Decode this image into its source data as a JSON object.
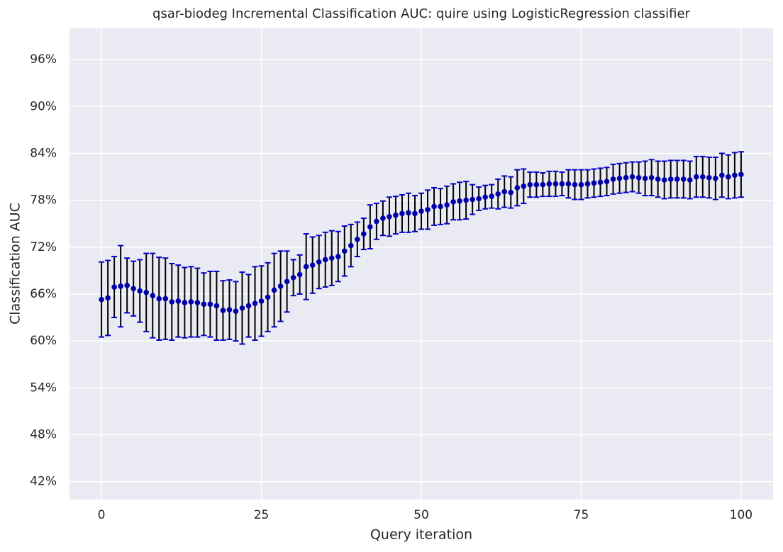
{
  "chart_data": {
    "type": "errorbar",
    "title": "qsar-biodeg Incremental Classification AUC: quire using LogisticRegression classifier",
    "xlabel": "Query iteration",
    "ylabel": "Classification AUC",
    "x": [
      0,
      1,
      2,
      3,
      4,
      5,
      6,
      7,
      8,
      9,
      10,
      11,
      12,
      13,
      14,
      15,
      16,
      17,
      18,
      19,
      20,
      21,
      22,
      23,
      24,
      25,
      26,
      27,
      28,
      29,
      30,
      31,
      32,
      33,
      34,
      35,
      36,
      37,
      38,
      39,
      40,
      41,
      42,
      43,
      44,
      45,
      46,
      47,
      48,
      49,
      50,
      51,
      52,
      53,
      54,
      55,
      56,
      57,
      58,
      59,
      60,
      61,
      62,
      63,
      64,
      65,
      66,
      67,
      68,
      69,
      70,
      71,
      72,
      73,
      74,
      75,
      76,
      77,
      78,
      79,
      80,
      81,
      82,
      83,
      84,
      85,
      86,
      87,
      88,
      89,
      90,
      91,
      92,
      93,
      94,
      95,
      96,
      97,
      98,
      99,
      100
    ],
    "values": [
      65.3,
      65.5,
      66.9,
      67.0,
      67.1,
      66.7,
      66.4,
      66.2,
      65.8,
      65.4,
      65.4,
      65.0,
      65.1,
      64.9,
      65.0,
      64.9,
      64.7,
      64.7,
      64.5,
      63.9,
      64.0,
      63.8,
      64.2,
      64.5,
      64.8,
      65.1,
      65.6,
      66.5,
      67.0,
      67.6,
      68.1,
      68.5,
      69.5,
      69.7,
      70.1,
      70.4,
      70.6,
      70.8,
      71.5,
      72.2,
      73.0,
      73.7,
      74.6,
      75.3,
      75.7,
      75.9,
      76.1,
      76.3,
      76.4,
      76.3,
      76.6,
      76.8,
      77.2,
      77.2,
      77.4,
      77.8,
      77.9,
      78.0,
      78.1,
      78.2,
      78.4,
      78.5,
      78.8,
      79.1,
      79.0,
      79.6,
      79.8,
      80.0,
      80.0,
      80.0,
      80.1,
      80.1,
      80.1,
      80.1,
      80.0,
      80.0,
      80.1,
      80.2,
      80.3,
      80.4,
      80.7,
      80.8,
      80.9,
      81.0,
      80.9,
      80.8,
      80.9,
      80.7,
      80.6,
      80.7,
      80.7,
      80.7,
      80.6,
      81.0,
      81.0,
      80.9,
      80.8,
      81.2,
      81.0,
      81.2,
      81.3
    ],
    "errors": [
      4.8,
      4.8,
      3.9,
      5.2,
      3.5,
      3.5,
      4.0,
      5.0,
      5.4,
      5.3,
      5.2,
      4.9,
      4.6,
      4.5,
      4.5,
      4.4,
      4.0,
      4.2,
      4.4,
      3.8,
      3.8,
      3.8,
      4.6,
      4.0,
      4.7,
      4.5,
      4.4,
      4.7,
      4.5,
      3.9,
      2.3,
      2.5,
      4.2,
      3.6,
      3.4,
      3.5,
      3.5,
      3.2,
      3.2,
      2.7,
      2.2,
      2.0,
      2.8,
      2.3,
      2.2,
      2.5,
      2.4,
      2.4,
      2.5,
      2.3,
      2.3,
      2.5,
      2.4,
      2.3,
      2.4,
      2.3,
      2.4,
      2.4,
      1.9,
      1.5,
      1.5,
      1.5,
      1.9,
      2.0,
      2.0,
      2.3,
      2.2,
      1.6,
      1.6,
      1.5,
      1.6,
      1.6,
      1.5,
      1.8,
      1.9,
      1.9,
      1.8,
      1.8,
      1.8,
      1.8,
      1.9,
      1.9,
      1.9,
      1.9,
      2.0,
      2.2,
      2.3,
      2.3,
      2.4,
      2.4,
      2.4,
      2.4,
      2.4,
      2.6,
      2.6,
      2.6,
      2.7,
      2.8,
      2.8,
      2.9,
      2.9
    ],
    "color": "#0000aa",
    "ecolor": "#000000",
    "capcolor": "#0000cc",
    "background": "#eaeaf2",
    "grid": true,
    "xlim": [
      -5,
      105
    ],
    "xticks": [
      0,
      25,
      50,
      75,
      100
    ],
    "ylim": [
      39.7,
      100
    ],
    "yticks": [
      {
        "value": 42,
        "label": "42%"
      },
      {
        "value": 48,
        "label": "48%"
      },
      {
        "value": 54,
        "label": "54%"
      },
      {
        "value": 60,
        "label": "60%"
      },
      {
        "value": 66,
        "label": "66%"
      },
      {
        "value": 72,
        "label": "72%"
      },
      {
        "value": 78,
        "label": "78%"
      },
      {
        "value": 84,
        "label": "84%"
      },
      {
        "value": 90,
        "label": "90%"
      },
      {
        "value": 96,
        "label": "96%"
      }
    ]
  }
}
